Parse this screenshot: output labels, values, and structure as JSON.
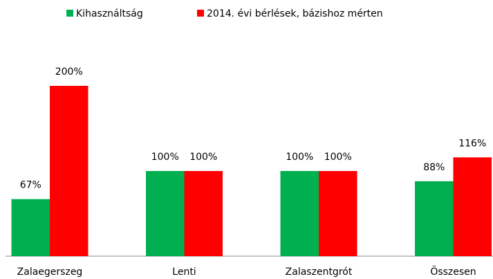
{
  "chart_data": {
    "type": "bar",
    "categories": [
      "Zalaegerszeg",
      "Lenti",
      "Zalaszentgrót",
      "Összesen"
    ],
    "series": [
      {
        "name": "Kihasználtság",
        "color": "#00b050",
        "values": [
          67,
          100,
          100,
          88
        ],
        "value_labels": [
          "67%",
          "100%",
          "100%",
          "88%"
        ]
      },
      {
        "name": "2014. évi bérlések, bázishoz mérten",
        "color": "#ff0000",
        "values": [
          200,
          100,
          100,
          116
        ],
        "value_labels": [
          "200%",
          "100%",
          "100%",
          "116%"
        ]
      }
    ],
    "legend": "top"
  }
}
